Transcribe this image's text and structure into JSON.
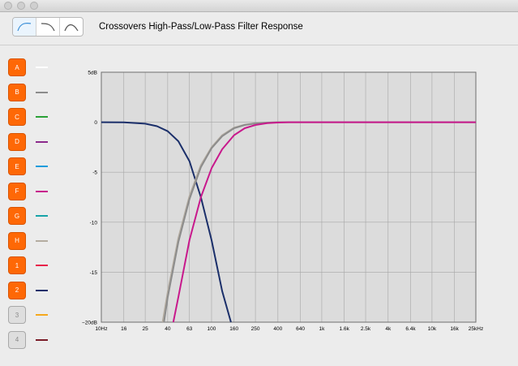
{
  "window": {
    "traffic_lights": [
      "close",
      "minimize",
      "zoom"
    ]
  },
  "toolbar": {
    "title": "Crossovers High-Pass/Low-Pass Filter Response",
    "modes": [
      {
        "icon": "highpass-curve-icon",
        "active": true
      },
      {
        "icon": "lowpass-curve-icon",
        "active": false
      },
      {
        "icon": "bandpass-curve-icon",
        "active": false
      }
    ]
  },
  "channels": [
    {
      "label": "A",
      "enabled": true,
      "color": "#ffffff"
    },
    {
      "label": "B",
      "enabled": true,
      "color": "#8c8c8c"
    },
    {
      "label": "C",
      "enabled": true,
      "color": "#2aa137"
    },
    {
      "label": "D",
      "enabled": true,
      "color": "#8c2a8c"
    },
    {
      "label": "E",
      "enabled": true,
      "color": "#1c9cdc"
    },
    {
      "label": "F",
      "enabled": true,
      "color": "#c8198c"
    },
    {
      "label": "G",
      "enabled": true,
      "color": "#17a3a8"
    },
    {
      "label": "H",
      "enabled": true,
      "color": "#b4aca0"
    },
    {
      "label": "1",
      "enabled": true,
      "color": "#e8244a"
    },
    {
      "label": "2",
      "enabled": true,
      "color": "#1b2f6a"
    },
    {
      "label": "3",
      "enabled": false,
      "color": "#f5a81c"
    },
    {
      "label": "4",
      "enabled": false,
      "color": "#7a1c28"
    }
  ],
  "chart_data": {
    "type": "line",
    "title": "",
    "xlabel": "",
    "ylabel": "",
    "x_scale": "log",
    "x_ticks": [
      {
        "hz": 10,
        "label": "10Hz"
      },
      {
        "hz": 16,
        "label": "16"
      },
      {
        "hz": 25,
        "label": "25"
      },
      {
        "hz": 40,
        "label": "40"
      },
      {
        "hz": 63,
        "label": "63"
      },
      {
        "hz": 100,
        "label": "100"
      },
      {
        "hz": 160,
        "label": "160"
      },
      {
        "hz": 250,
        "label": "250"
      },
      {
        "hz": 400,
        "label": "400"
      },
      {
        "hz": 640,
        "label": "640"
      },
      {
        "hz": 1000,
        "label": "1k"
      },
      {
        "hz": 1600,
        "label": "1.6k"
      },
      {
        "hz": 2500,
        "label": "2.5k"
      },
      {
        "hz": 4000,
        "label": "4k"
      },
      {
        "hz": 6400,
        "label": "6.4k"
      },
      {
        "hz": 10000,
        "label": "10k"
      },
      {
        "hz": 16000,
        "label": "16k"
      },
      {
        "hz": 25000,
        "label": "25kHz"
      }
    ],
    "y_ticks": [
      {
        "db": 5,
        "label": "5dB"
      },
      {
        "db": 0,
        "label": "0"
      },
      {
        "db": -5,
        "label": "-5"
      },
      {
        "db": -10,
        "label": "-10"
      },
      {
        "db": -15,
        "label": "-15"
      },
      {
        "db": -20,
        "label": "−20dB"
      }
    ],
    "xlim": [
      10,
      25000
    ],
    "ylim": [
      -20,
      5
    ],
    "grid": true,
    "series": [
      {
        "channel": "2",
        "color": "#1b2f6a",
        "x": [
          10,
          16,
          25,
          32,
          40,
          50,
          63,
          80,
          100,
          125,
          150
        ],
        "y": [
          0,
          -0.02,
          -0.15,
          -0.4,
          -0.9,
          -1.9,
          -3.9,
          -7.5,
          -11.8,
          -16.9,
          -20
        ]
      },
      {
        "channel": "H",
        "color": "#b4aca0",
        "x": [
          36,
          40,
          50,
          63,
          80,
          100,
          125,
          160,
          200,
          250,
          320,
          400,
          1000,
          25000
        ],
        "y": [
          -20,
          -17,
          -11.6,
          -7.4,
          -4.3,
          -2.5,
          -1.3,
          -0.55,
          -0.25,
          -0.1,
          -0.03,
          0,
          0,
          0
        ]
      },
      {
        "channel": "B",
        "color": "#8c8c8c",
        "x": [
          37,
          40,
          50,
          63,
          80,
          100,
          125,
          160,
          200,
          250,
          320,
          400,
          1000,
          25000
        ],
        "y": [
          -20,
          -17.5,
          -12,
          -7.7,
          -4.5,
          -2.6,
          -1.4,
          -0.6,
          -0.28,
          -0.12,
          -0.04,
          0,
          0,
          0
        ]
      },
      {
        "channel": "F",
        "color": "#c8198c",
        "x": [
          45,
          50,
          63,
          80,
          100,
          125,
          160,
          200,
          250,
          320,
          400,
          500,
          1000,
          25000
        ],
        "y": [
          -20,
          -17.5,
          -11.8,
          -7.5,
          -4.6,
          -2.7,
          -1.3,
          -0.6,
          -0.28,
          -0.1,
          -0.03,
          0,
          0,
          0
        ]
      }
    ]
  }
}
